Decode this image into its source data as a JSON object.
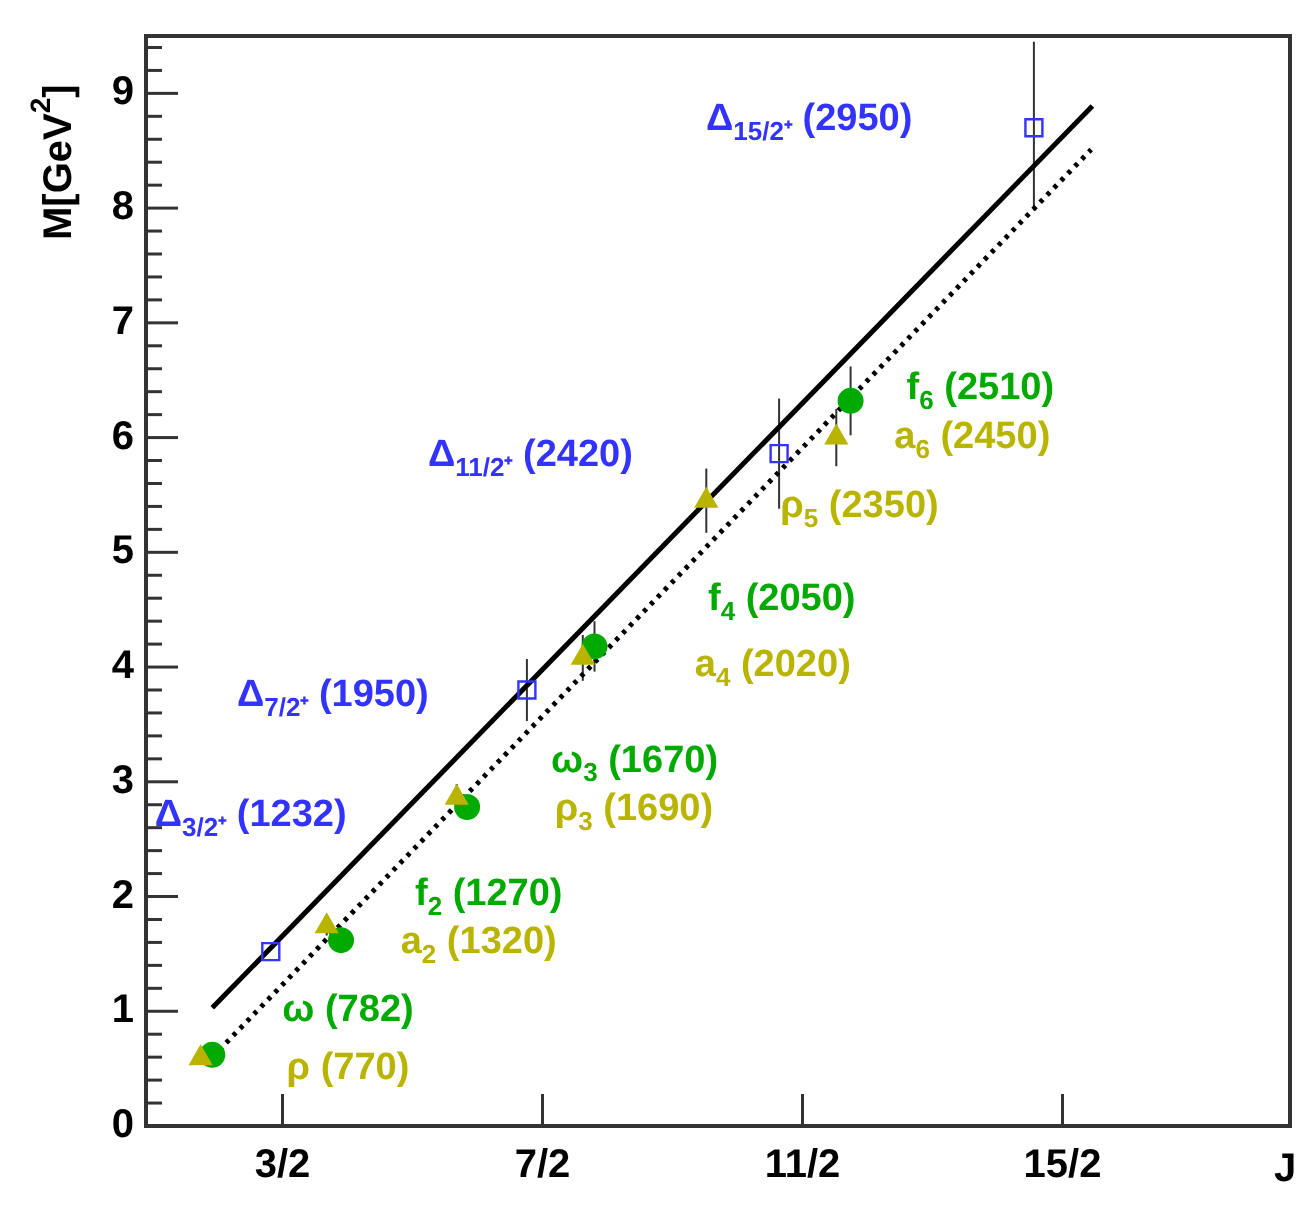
{
  "chart_data": {
    "type": "scatter",
    "ylabel": "M[GeV$^{2}$]",
    "xlabel": "J",
    "xlim": [
      0.45,
      9.25
    ],
    "ylim": [
      0,
      9.5
    ],
    "xticks": [
      {
        "value": 1.5,
        "label": "3/2"
      },
      {
        "value": 3.5,
        "label": "7/2"
      },
      {
        "value": 5.5,
        "label": "11/2"
      },
      {
        "value": 7.5,
        "label": "15/2"
      }
    ],
    "yticks": [
      0,
      {
        "value": 0.2,
        "label": null
      },
      {
        "value": 0.4,
        "label": null
      },
      {
        "value": 0.6,
        "label": null
      },
      {
        "value": 0.8,
        "label": null
      },
      1,
      {
        "value": 1.2,
        "label": null
      },
      {
        "value": 1.4,
        "label": null
      },
      {
        "value": 1.6,
        "label": null
      },
      {
        "value": 1.8,
        "label": null
      },
      2,
      {
        "value": 2.2,
        "label": null
      },
      {
        "value": 2.4,
        "label": null
      },
      {
        "value": 2.6,
        "label": null
      },
      {
        "value": 2.8,
        "label": null
      },
      3,
      {
        "value": 3.2,
        "label": null
      },
      {
        "value": 3.4,
        "label": null
      },
      {
        "value": 3.6,
        "label": null
      },
      {
        "value": 3.8,
        "label": null
      },
      4,
      {
        "value": 4.2,
        "label": null
      },
      {
        "value": 4.4,
        "label": null
      },
      {
        "value": 4.6,
        "label": null
      },
      {
        "value": 4.8,
        "label": null
      },
      5,
      {
        "value": 5.2,
        "label": null
      },
      {
        "value": 5.4,
        "label": null
      },
      {
        "value": 5.6,
        "label": null
      },
      {
        "value": 5.8,
        "label": null
      },
      6,
      {
        "value": 6.2,
        "label": null
      },
      {
        "value": 6.4,
        "label": null
      },
      {
        "value": 6.6,
        "label": null
      },
      {
        "value": 6.8,
        "label": null
      },
      7,
      {
        "value": 7.2,
        "label": null
      },
      {
        "value": 7.4,
        "label": null
      },
      {
        "value": 7.6,
        "label": null
      },
      {
        "value": 7.8,
        "label": null
      },
      8,
      {
        "value": 8.2,
        "label": null
      },
      {
        "value": 8.4,
        "label": null
      },
      {
        "value": 8.6,
        "label": null
      },
      {
        "value": 8.8,
        "label": null
      },
      9,
      {
        "value": 9.2,
        "label": null
      },
      {
        "value": 9.4,
        "label": null
      }
    ],
    "grid": false,
    "legend": false,
    "series": [
      {
        "type": "line",
        "color": "#000000",
        "line_style": "solid",
        "marker": "none",
        "x": [
          0.96,
          7.73
        ],
        "values": [
          1.03,
          8.89
        ]
      },
      {
        "type": "line",
        "color": "#000000",
        "line_style": "dotted",
        "marker": "none",
        "x": [
          0.96,
          7.72
        ],
        "values": [
          0.6,
          8.51
        ]
      },
      {
        "color": "#3333ff",
        "marker": "square",
        "x": [
          1.41,
          3.38,
          5.32,
          7.28
        ],
        "values": [
          1.52,
          3.8,
          5.86,
          8.7
        ],
        "errors": [
          null,
          0.27,
          0.48,
          [
            7.98,
            9.45
          ]
        ]
      },
      {
        "color": "#b8b400",
        "marker": "triangle",
        "x": [
          0.87,
          1.84,
          2.84,
          3.81,
          4.76,
          5.76
        ],
        "values": [
          0.59,
          1.74,
          2.86,
          4.08,
          5.45,
          6.0
        ],
        "errors": [
          null,
          0.08,
          0.12,
          0.2,
          0.28,
          0.25
        ]
      },
      {
        "color": "#00aa00",
        "marker": "circle",
        "x": [
          0.96,
          1.95,
          2.92,
          3.9,
          5.87
        ],
        "values": [
          0.62,
          1.62,
          2.78,
          4.18,
          6.32
        ],
        "errors": [
          null,
          null,
          0.1,
          0.22,
          0.3
        ]
      }
    ],
    "annotations": [
      {
        "text": "Δ$_{3/2⁺}$ (1232)",
        "x": 1.41,
        "y": 1.52
      },
      {
        "text": "Δ$_{7/2⁺}$ (1950)",
        "x": 3.38,
        "y": 3.8
      },
      "Δ$_{11/2⁺}$ (2420)",
      "Δ$_{15/2⁺}$ (2950)",
      {
        "text": "ω (782)",
        "x": 0.96,
        "y": 0.62
      },
      {
        "text": "ρ (770)",
        "x": 0.87,
        "y": 0.59
      },
      {
        "text": "f$_{2}$ (1270)",
        "x": 1.95,
        "y": 1.62
      },
      {
        "text": "a$_{2}$ (1320)",
        "x": 1.84,
        "y": 1.74
      },
      {
        "text": "ω$_{3}$ (1670)",
        "x": 2.92,
        "y": 2.78
      },
      {
        "text": "ρ$_{3}$ (1690)",
        "x": 2.84,
        "y": 2.86
      },
      "f$_{4}$ (2050)",
      {
        "text": "a$_{4}$ (2020)",
        "x": 3.81,
        "y": 4.08
      },
      {
        "text": "ρ$_{5}$ (2350)",
        "x": 4.76,
        "y": 5.45
      },
      {
        "text": "f$_{6}$ (2510)",
        "x": 5.87,
        "y": 6.32
      },
      {
        "text": "a$_{6}$ (2450)",
        "x": 5.76,
        "y": 6.0
      }
    ]
  }
}
